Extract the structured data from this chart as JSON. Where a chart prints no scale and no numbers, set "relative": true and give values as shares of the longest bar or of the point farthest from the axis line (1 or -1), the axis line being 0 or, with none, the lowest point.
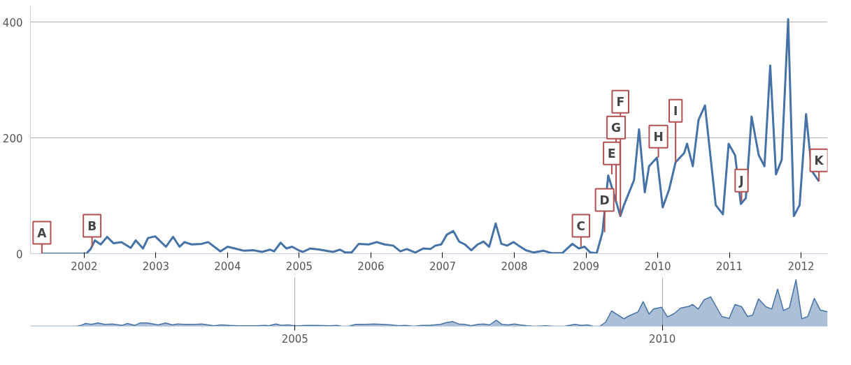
{
  "chart_data": [
    {
      "type": "line",
      "color": "#4572a7",
      "xlim": [
        2001.25,
        2012.37
      ],
      "ylim": [
        0,
        428
      ],
      "xticks": [
        2002,
        2003,
        2004,
        2005,
        2006,
        2007,
        2008,
        2009,
        2010,
        2011,
        2012
      ],
      "yticks": [
        0,
        200,
        400
      ],
      "grid": "y",
      "x": [
        2001.4,
        2002.03,
        2002.09,
        2002.15,
        2002.23,
        2002.32,
        2002.41,
        2002.52,
        2002.65,
        2002.72,
        2002.82,
        2002.89,
        2002.99,
        2003.14,
        2003.24,
        2003.33,
        2003.4,
        2003.5,
        2003.64,
        2003.73,
        2003.9,
        2004.0,
        2004.1,
        2004.23,
        2004.36,
        2004.48,
        2004.59,
        2004.65,
        2004.74,
        2004.82,
        2004.9,
        2004.99,
        2005.05,
        2005.15,
        2005.29,
        2005.47,
        2005.57,
        2005.64,
        2005.73,
        2005.83,
        2005.97,
        2006.08,
        2006.19,
        2006.31,
        2006.41,
        2006.5,
        2006.62,
        2006.73,
        2006.83,
        2006.9,
        2006.98,
        2007.06,
        2007.15,
        2007.23,
        2007.31,
        2007.4,
        2007.49,
        2007.57,
        2007.65,
        2007.74,
        2007.82,
        2007.9,
        2007.99,
        2008.06,
        2008.16,
        2008.27,
        2008.41,
        2008.52,
        2008.67,
        2008.81,
        2008.9,
        2008.98,
        2009.06,
        2009.15,
        2009.23,
        2009.31,
        2009.36,
        2009.48,
        2009.53,
        2009.67,
        2009.74,
        2009.82,
        2009.88,
        2009.99,
        2010.07,
        2010.16,
        2010.25,
        2010.37,
        2010.41,
        2010.49,
        2010.57,
        2010.66,
        2010.81,
        2010.91,
        2010.99,
        2011.08,
        2011.16,
        2011.23,
        2011.31,
        2011.41,
        2011.49,
        2011.57,
        2011.65,
        2011.73,
        2011.82,
        2011.9,
        2011.98,
        2012.07,
        2012.15,
        2012.25
      ],
      "values": [
        0,
        0,
        8,
        23,
        16,
        29,
        18,
        20,
        10,
        23,
        9,
        27,
        30,
        12,
        29,
        12,
        20,
        16,
        17,
        20,
        4,
        12,
        9,
        5,
        6,
        3,
        7,
        4,
        19,
        9,
        12,
        6,
        3,
        9,
        7,
        3,
        7,
        2,
        2,
        17,
        16,
        20,
        16,
        14,
        4,
        8,
        2,
        9,
        8,
        14,
        16,
        33,
        39,
        21,
        16,
        6,
        16,
        21,
        12,
        52,
        17,
        14,
        20,
        14,
        6,
        2,
        5,
        1,
        1,
        17,
        9,
        12,
        2,
        1,
        37,
        135,
        115,
        65,
        84,
        127,
        215,
        106,
        151,
        166,
        80,
        111,
        158,
        174,
        190,
        151,
        231,
        256,
        84,
        68,
        190,
        170,
        86,
        96,
        237,
        170,
        151,
        325,
        137,
        162,
        405,
        65,
        84,
        241,
        143,
        125
      ],
      "annotations": [
        {
          "text": "A",
          "x": 2001.41,
          "y": 0
        },
        {
          "text": "B",
          "x": 2002.11,
          "y": 12
        },
        {
          "text": "C",
          "x": 2008.93,
          "y": 12
        },
        {
          "text": "D",
          "x": 2009.26,
          "y": 37
        },
        {
          "text": "E",
          "x": 2009.36,
          "y": 137
        },
        {
          "text": "G",
          "x": 2009.42,
          "y": 90
        },
        {
          "text": "F",
          "x": 2009.48,
          "y": 65
        },
        {
          "text": "H",
          "x": 2010.01,
          "y": 166
        },
        {
          "text": "I",
          "x": 2010.25,
          "y": 158
        },
        {
          "text": "J",
          "x": 2011.17,
          "y": 90
        },
        {
          "text": "K",
          "x": 2012.25,
          "y": 125
        }
      ]
    },
    {
      "type": "area",
      "color": "#4572a7",
      "xlim": [
        2001.4,
        2012.25
      ],
      "relative": true,
      "xticks": [
        2005,
        2010
      ],
      "grid": "x",
      "tick_labels": "x",
      "x": [
        2001.4,
        2002.03,
        2002.09,
        2002.15,
        2002.23,
        2002.32,
        2002.41,
        2002.52,
        2002.65,
        2002.72,
        2002.82,
        2002.89,
        2002.99,
        2003.14,
        2003.24,
        2003.33,
        2003.4,
        2003.5,
        2003.64,
        2003.73,
        2003.9,
        2004.0,
        2004.1,
        2004.23,
        2004.36,
        2004.48,
        2004.59,
        2004.65,
        2004.74,
        2004.82,
        2004.9,
        2004.99,
        2005.05,
        2005.15,
        2005.29,
        2005.47,
        2005.57,
        2005.64,
        2005.73,
        2005.83,
        2005.97,
        2006.08,
        2006.19,
        2006.31,
        2006.41,
        2006.5,
        2006.62,
        2006.73,
        2006.83,
        2006.9,
        2006.98,
        2007.06,
        2007.15,
        2007.23,
        2007.31,
        2007.4,
        2007.49,
        2007.57,
        2007.65,
        2007.74,
        2007.82,
        2007.9,
        2007.99,
        2008.06,
        2008.16,
        2008.27,
        2008.41,
        2008.52,
        2008.67,
        2008.81,
        2008.9,
        2008.98,
        2009.06,
        2009.15,
        2009.23,
        2009.31,
        2009.36,
        2009.48,
        2009.53,
        2009.67,
        2009.74,
        2009.82,
        2009.88,
        2009.99,
        2010.07,
        2010.16,
        2010.25,
        2010.37,
        2010.41,
        2010.49,
        2010.57,
        2010.66,
        2010.81,
        2010.91,
        2010.99,
        2011.08,
        2011.16,
        2011.23,
        2011.31,
        2011.41,
        2011.49,
        2011.57,
        2011.65,
        2011.73,
        2011.82,
        2011.9,
        2011.98,
        2012.07,
        2012.15,
        2012.25
      ],
      "values": [
        0,
        0,
        0.02,
        0.06,
        0.04,
        0.07,
        0.04,
        0.05,
        0.02,
        0.06,
        0.02,
        0.07,
        0.07,
        0.03,
        0.07,
        0.03,
        0.05,
        0.04,
        0.04,
        0.05,
        0.01,
        0.03,
        0.02,
        0.01,
        0.01,
        0.01,
        0.02,
        0.01,
        0.05,
        0.02,
        0.03,
        0.01,
        0.01,
        0.02,
        0.02,
        0.01,
        0.02,
        0,
        0,
        0.04,
        0.04,
        0.05,
        0.04,
        0.03,
        0.01,
        0.02,
        0,
        0.02,
        0.02,
        0.03,
        0.04,
        0.08,
        0.1,
        0.05,
        0.04,
        0.01,
        0.04,
        0.05,
        0.03,
        0.13,
        0.04,
        0.03,
        0.05,
        0.03,
        0.01,
        0,
        0.01,
        0,
        0,
        0.04,
        0.02,
        0.03,
        0,
        0,
        0.09,
        0.33,
        0.28,
        0.16,
        0.21,
        0.31,
        0.53,
        0.26,
        0.37,
        0.41,
        0.2,
        0.27,
        0.39,
        0.43,
        0.47,
        0.37,
        0.57,
        0.63,
        0.21,
        0.17,
        0.47,
        0.42,
        0.21,
        0.24,
        0.59,
        0.42,
        0.37,
        0.8,
        0.34,
        0.4,
        1,
        0.16,
        0.21,
        0.6,
        0.35,
        0.31
      ]
    }
  ]
}
